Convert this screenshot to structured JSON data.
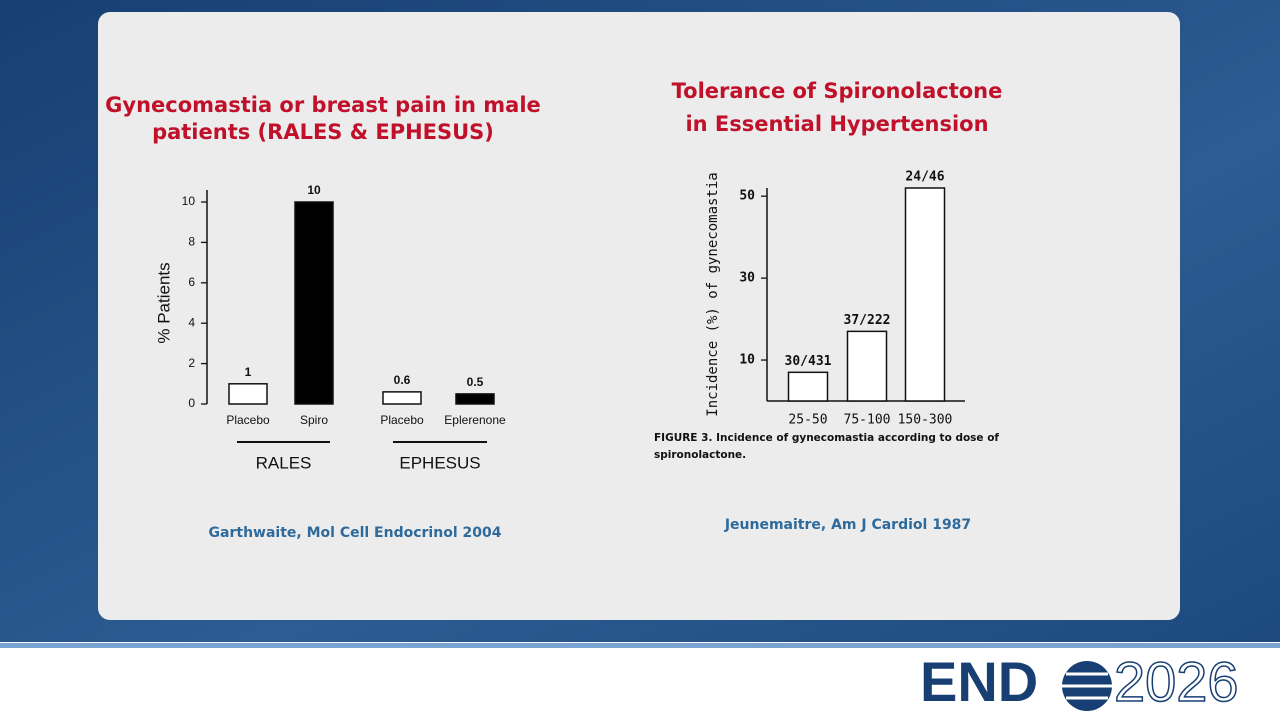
{
  "chart_data": [
    {
      "type": "bar",
      "title": [
        "Gynecomastia or breast pain in male",
        "patients (RALES & EPHESUS)"
      ],
      "ylabel": "% Patients",
      "categories": [
        "Placebo",
        "Spiro",
        "Placebo",
        "Eplerenone"
      ],
      "values": [
        1,
        10,
        0.6,
        0.5
      ],
      "colors": [
        "#ffffff",
        "#000000",
        "#ffffff",
        "#000000"
      ],
      "groups": [
        "RALES",
        "EPHESUS"
      ],
      "ylim": [
        0,
        10
      ],
      "yticks": [
        0,
        2,
        4,
        6,
        8,
        10
      ],
      "source": "Garthwaite, Mol Cell Endocrinol 2004"
    },
    {
      "type": "bar",
      "title": [
        "Tolerance of Spironolactone",
        "in Essential Hypertension"
      ],
      "ylabel": "Incidence (%) of gynecomastia",
      "categories": [
        "25-50",
        "75-100",
        "150-300"
      ],
      "values": [
        7,
        17,
        52
      ],
      "value_labels": [
        "30/431",
        "37/222",
        "24/46"
      ],
      "color": "#ffffff",
      "ylim": [
        0,
        52
      ],
      "yticks": [
        10,
        30,
        50
      ],
      "caption": [
        "FIGURE 3. Incidence of gynecomastia according to dose of",
        "spironolactone."
      ],
      "source": "Jeunemaitre, Am J Cardiol 1987"
    }
  ],
  "logo": {
    "brand": "END",
    "year": "2026"
  }
}
